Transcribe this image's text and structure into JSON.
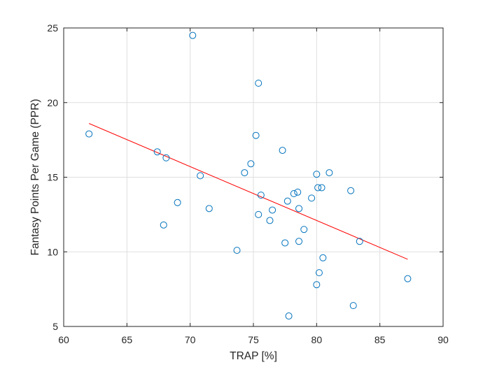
{
  "chart_data": {
    "type": "scatter",
    "title": "",
    "xlabel": "TRAP [%]",
    "ylabel": "Fantasy Points Per Game (PPR)",
    "xlim": [
      60,
      90
    ],
    "ylim": [
      5,
      25
    ],
    "xticks": [
      "60",
      "65",
      "70",
      "75",
      "80",
      "85",
      "90"
    ],
    "yticks": [
      "5",
      "10",
      "15",
      "20",
      "25"
    ],
    "grid": true,
    "marker_color": "#0072BD",
    "fit_color": "#FF0000",
    "series": [
      {
        "x": [
          62.0,
          67.4,
          67.9,
          68.1,
          69.0,
          70.2,
          70.8,
          71.5,
          73.7,
          74.3,
          74.8,
          75.2,
          75.4,
          75.4,
          75.6,
          76.3,
          76.5,
          77.3,
          77.5,
          77.7,
          77.8,
          78.2,
          78.5,
          78.6,
          78.6,
          79.0,
          79.6,
          80.0,
          80.0,
          80.1,
          80.2,
          80.4,
          80.5,
          81.0,
          82.7,
          82.9,
          83.4,
          87.2
        ],
        "y": [
          17.9,
          16.7,
          11.8,
          16.3,
          13.3,
          24.5,
          15.1,
          12.9,
          10.1,
          15.3,
          15.9,
          17.8,
          12.5,
          21.3,
          13.8,
          12.1,
          12.8,
          16.8,
          10.6,
          13.4,
          5.7,
          13.9,
          14.0,
          10.7,
          12.9,
          11.5,
          13.6,
          7.8,
          15.2,
          14.3,
          8.6,
          14.3,
          9.6,
          15.3,
          14.1,
          6.4,
          10.7,
          8.2
        ]
      }
    ],
    "fit_line": {
      "x": [
        62.0,
        87.2
      ],
      "y": [
        18.6,
        9.5
      ]
    }
  }
}
